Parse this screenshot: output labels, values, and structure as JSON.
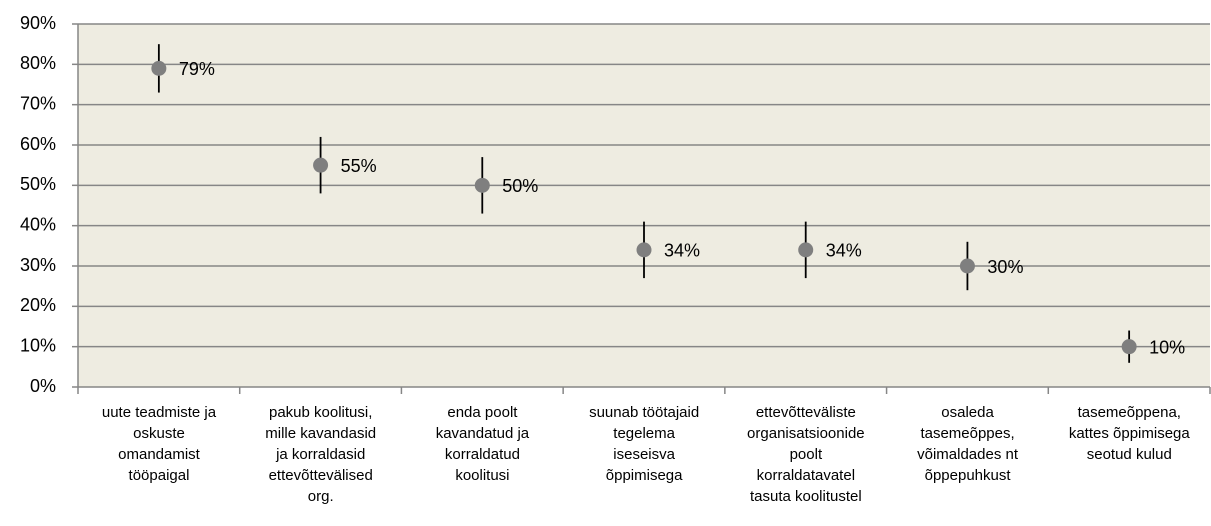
{
  "chart_data": {
    "type": "dot_error",
    "categories": [
      "uute teadmiste ja\noskuste\nomandamist\ntööpaigal",
      "pakub koolitusi,\nmille kavandasid\nja korraldasid\nettevõttevälised\norg.",
      "enda poolt\nkavandatud ja\nkorraldatud\nkoolitusi",
      "suunab töötajaid\ntegelema\niseseisva\nõppimisega",
      "ettevõtteväliste\norganisatsioonide\npoolt\nkorraldatavatel\ntasuta koolitustel",
      "osaleda\ntasemeõppes,\nvõimaldades nt\nõppepuhkust",
      "tasemeõppena,\nkattes õppimisega\nseotud kulud"
    ],
    "values": [
      79,
      55,
      50,
      34,
      34,
      30,
      10
    ],
    "value_labels": [
      "79%",
      "55%",
      "50%",
      "34%",
      "34%",
      "30%",
      "10%"
    ],
    "errors": [
      6,
      7,
      7,
      7,
      7,
      6,
      4
    ],
    "color": "#7f7f7f",
    "ylim": [
      0,
      90
    ],
    "yticks": [
      {
        "value": 0,
        "label": "0%"
      },
      {
        "value": 10,
        "label": "10%"
      },
      {
        "value": 20,
        "label": "20%"
      },
      {
        "value": 30,
        "label": "30%"
      },
      {
        "value": 40,
        "label": "40%"
      },
      {
        "value": 50,
        "label": "50%"
      },
      {
        "value": 60,
        "label": "60%"
      },
      {
        "value": 70,
        "label": "70%"
      },
      {
        "value": 80,
        "label": "80%"
      },
      {
        "value": 90,
        "label": "90%"
      }
    ],
    "grid": true
  }
}
